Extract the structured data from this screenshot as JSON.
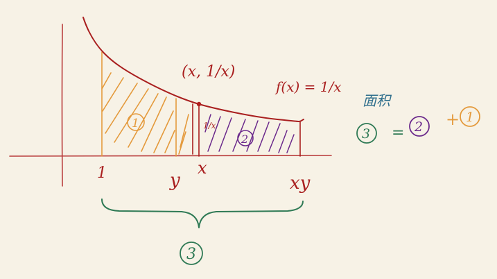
{
  "labels": {
    "x_tick_1": "1",
    "x_tick_y": "y",
    "x_tick_x": "x",
    "x_tick_xy": "xy",
    "point_label": "(x, 1/x)",
    "function_label": "f(x) = 1/x",
    "small_height_label": "1/x",
    "region_1": "1",
    "region_2": "2",
    "region_3": "3",
    "area_label": "面积",
    "eq_region_3": "3",
    "eq_equals": "=",
    "eq_region_2": "2",
    "eq_plus": "+",
    "eq_region_1": "1"
  },
  "colors": {
    "background": "#f7f2e6",
    "axes": "#b83a3a",
    "curve": "#a91f1f",
    "region_1": "#e49a3c",
    "region_2": "#6b2a8c",
    "brace": "#2f7a55",
    "area_label": "#2e6e8c"
  }
}
